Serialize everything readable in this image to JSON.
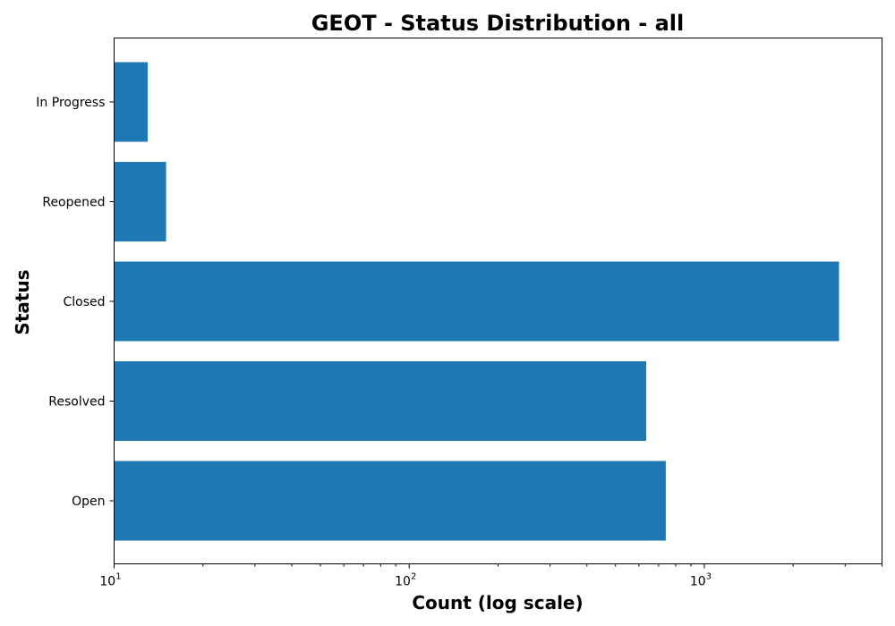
{
  "chart_data": {
    "type": "bar",
    "orientation": "horizontal",
    "title": "GEOT - Status Distribution - all",
    "xlabel": "Count (log scale)",
    "ylabel": "Status",
    "x_scale": "log",
    "xlim": [
      10,
      4000
    ],
    "categories": [
      "Open",
      "Resolved",
      "Closed",
      "Reopened",
      "In Progress"
    ],
    "values": [
      740,
      635,
      2860,
      15,
      13
    ],
    "x_ticks": [
      {
        "value": 10,
        "base": "10",
        "exp": "1"
      },
      {
        "value": 100,
        "base": "10",
        "exp": "2"
      },
      {
        "value": 1000,
        "base": "10",
        "exp": "3"
      }
    ],
    "bar_color": "#1f77b4",
    "grid": false
  }
}
